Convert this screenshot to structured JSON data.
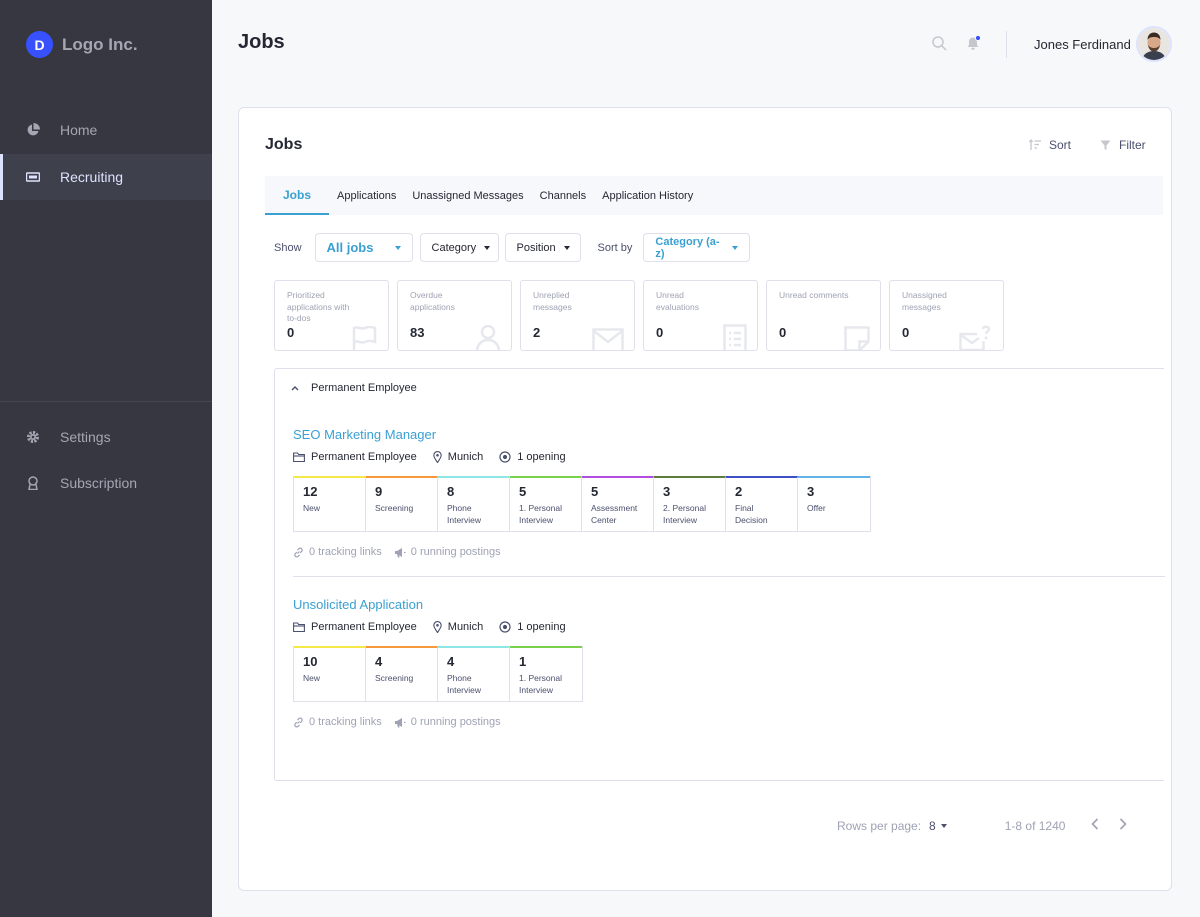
{
  "sidebar": {
    "logo_mark": "D",
    "logo_text": "Logo Inc.",
    "items": [
      {
        "label": "Home",
        "icon": "pie-chart-icon"
      },
      {
        "label": "Recruiting",
        "icon": "ticket-icon",
        "active": true
      },
      {
        "label": "Settings",
        "icon": "gear-icon"
      },
      {
        "label": "Subscription",
        "icon": "award-icon"
      }
    ]
  },
  "header": {
    "title": "Jobs",
    "user_name": "Jones Ferdinand",
    "notification_dot_color": "#3751ff"
  },
  "card": {
    "title": "Jobs",
    "sort_label": "Sort",
    "filter_label": "Filter",
    "tabs": [
      "Jobs",
      "Applications",
      "Unassigned Messages",
      "Channels",
      "Application History"
    ],
    "active_tab": "Jobs"
  },
  "filters": {
    "show_label": "Show",
    "show_value": "All jobs",
    "category_value": "Category",
    "position_value": "Position",
    "sort_by_label": "Sort by",
    "sort_by_value": "Category (a-z)"
  },
  "stats": [
    {
      "label": "Prioritized applications with to-dos",
      "value": "0",
      "icon": "flag-icon"
    },
    {
      "label": "Overdue applications",
      "value": "83",
      "icon": "person-icon"
    },
    {
      "label": "Unreplied messages",
      "value": "2",
      "icon": "envelope-icon"
    },
    {
      "label": "Unread evaluations",
      "value": "0",
      "icon": "document-icon"
    },
    {
      "label": "Unread comments",
      "value": "0",
      "icon": "note-icon"
    },
    {
      "label": "Unassigned messages",
      "value": "0",
      "icon": "envelope-question-icon"
    }
  ],
  "group": {
    "title": "Permanent Employee",
    "jobs": [
      {
        "title": "SEO Marketing Manager",
        "type": "Permanent Employee",
        "location": "Munich",
        "openings": "1 opening",
        "stages": [
          {
            "count": "12",
            "label": "New",
            "color": "#f5e94a"
          },
          {
            "count": "9",
            "label": "Screening",
            "color": "#f5993c"
          },
          {
            "count": "8",
            "label": "Phone Interview",
            "color": "#8ee6e6"
          },
          {
            "count": "5",
            "label": "1. Personal Interview",
            "color": "#7bd24a"
          },
          {
            "count": "5",
            "label": "Assessment Center",
            "color": "#b14ee0"
          },
          {
            "count": "3",
            "label": "2. Personal Interview",
            "color": "#5d7d3c"
          },
          {
            "count": "2",
            "label": "Final Decision",
            "color": "#3e4fc9"
          },
          {
            "count": "3",
            "label": "Offer",
            "color": "#62b4e8"
          }
        ],
        "tracking_links": "0 tracking links",
        "running_postings": "0 running postings"
      },
      {
        "title": "Unsolicited Application",
        "type": "Permanent Employee",
        "location": "Munich",
        "openings": "1 opening",
        "stages": [
          {
            "count": "10",
            "label": "New",
            "color": "#f5e94a"
          },
          {
            "count": "4",
            "label": "Screening",
            "color": "#f5993c"
          },
          {
            "count": "4",
            "label": "Phone Interview",
            "color": "#8ee6e6"
          },
          {
            "count": "1",
            "label": "1. Personal Interview",
            "color": "#7bd24a"
          }
        ],
        "tracking_links": "0 tracking links",
        "running_postings": "0 running postings"
      }
    ]
  },
  "pagination": {
    "rows_label": "Rows per page:",
    "rows_value": "8",
    "range": "1-8 of 1240"
  },
  "colors": {
    "accent": "#3aa0d2",
    "sidebar_bg": "#363740",
    "logo": "#3751ff"
  }
}
